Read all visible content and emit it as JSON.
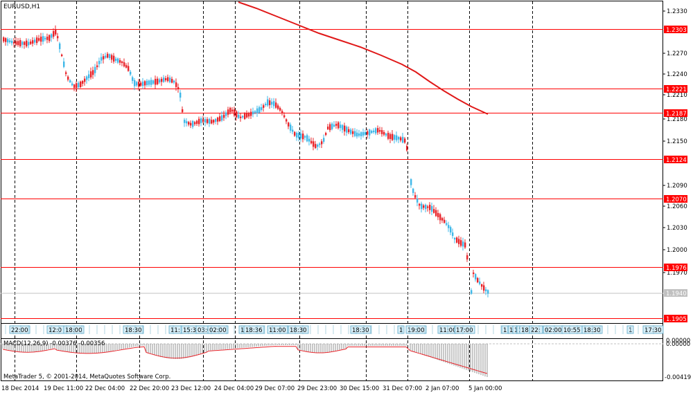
{
  "chart": {
    "symbol_title": "EURUSD,H1",
    "price_axis_labels": [
      "1.2330",
      "1.2270",
      "1.2240",
      "1.2210",
      "1.2180",
      "1.2150",
      "1.2090",
      "1.2060",
      "1.2030",
      "1.2000",
      "1.1970"
    ],
    "levels": [
      {
        "value": "1.2303"
      },
      {
        "value": "1.2221"
      },
      {
        "value": "1.2187"
      },
      {
        "value": "1.2124"
      },
      {
        "value": "1.2070"
      },
      {
        "value": "1.1976"
      },
      {
        "value": "1.1905"
      }
    ],
    "current_price": "1.1940",
    "colors": {
      "level_line": "#ff0000",
      "bull": "#3fb8e8",
      "bear": "#e8242a",
      "trend": "#e01818",
      "ask_line": "#c0c0c0"
    }
  },
  "event_markers": [
    "22:00",
    "12:0",
    "18:00",
    "18:30",
    "11:",
    "15:30",
    "03:00",
    "02:00",
    "1",
    "18:36",
    "11:00",
    "18:30",
    "18:30",
    "1",
    "19:00",
    "11:00",
    "17:00",
    "1",
    "1",
    "1",
    "1",
    "18",
    "22:",
    "02:00",
    "10:55",
    "18:30",
    "1",
    "17:30"
  ],
  "macd": {
    "title": "MACD(12,26,9) -0.00376 -0.00356",
    "axis_top": "0.00000",
    "axis_mid": "0.00000",
    "axis_bottom": "-0.00419"
  },
  "copyright": "MetaTrader 5, © 2001-2014, MetaQuotes Software Corp.",
  "time_axis_labels": [
    "18 Dec 2014",
    "19 Dec 11:00",
    "22 Dec 04:00",
    "22 Dec 20:00",
    "23 Dec 12:00",
    "24 Dec 04:00",
    "29 Dec 07:00",
    "29 Dec 23:00",
    "30 Dec 15:00",
    "31 Dec 07:00",
    "2 Jan 07:00",
    "5 Jan 00:00"
  ]
}
